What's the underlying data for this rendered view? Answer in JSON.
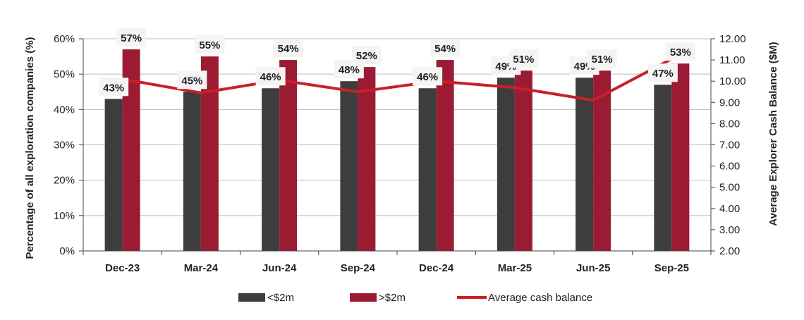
{
  "chart_data": {
    "type": "bar",
    "categories": [
      "Dec-23",
      "Mar-24",
      "Jun-24",
      "Sep-24",
      "Dec-24",
      "Mar-25",
      "Jun-25",
      "Sep-25"
    ],
    "series": [
      {
        "name": "<$2m",
        "kind": "bar",
        "axis": "left",
        "color": "#3d3d3d",
        "values": [
          43,
          45,
          46,
          48,
          46,
          49,
          49,
          47
        ],
        "labels": [
          "43%",
          "45%",
          "46%",
          "48%",
          "46%",
          "49%",
          "49%",
          "47%"
        ]
      },
      {
        "name": ">$2m",
        "kind": "bar",
        "axis": "left",
        "color": "#9b1b33",
        "values": [
          57,
          55,
          54,
          52,
          54,
          51,
          51,
          53
        ],
        "labels": [
          "57%",
          "55%",
          "54%",
          "52%",
          "54%",
          "51%",
          "51%",
          "53%"
        ]
      },
      {
        "name": "Average cash balance",
        "kind": "line",
        "axis": "right",
        "color": "#c8202a",
        "values": [
          10.1,
          9.45,
          10.05,
          9.5,
          10.0,
          9.7,
          9.1,
          11.05
        ]
      }
    ],
    "ylabel": "Percentage of all exploration companies (%)",
    "y2label": "Average Explorer Cash Balance ($M)",
    "ylim": [
      0,
      60
    ],
    "y2lim": [
      2,
      12
    ],
    "yticks": [
      "0%",
      "10%",
      "20%",
      "30%",
      "40%",
      "50%",
      "60%"
    ],
    "y2ticks": [
      "2.00",
      "3.00",
      "4.00",
      "5.00",
      "6.00",
      "7.00",
      "8.00",
      "9.00",
      "10.00",
      "11.00",
      "12.00"
    ],
    "grid": true,
    "legend_position": "bottom"
  }
}
